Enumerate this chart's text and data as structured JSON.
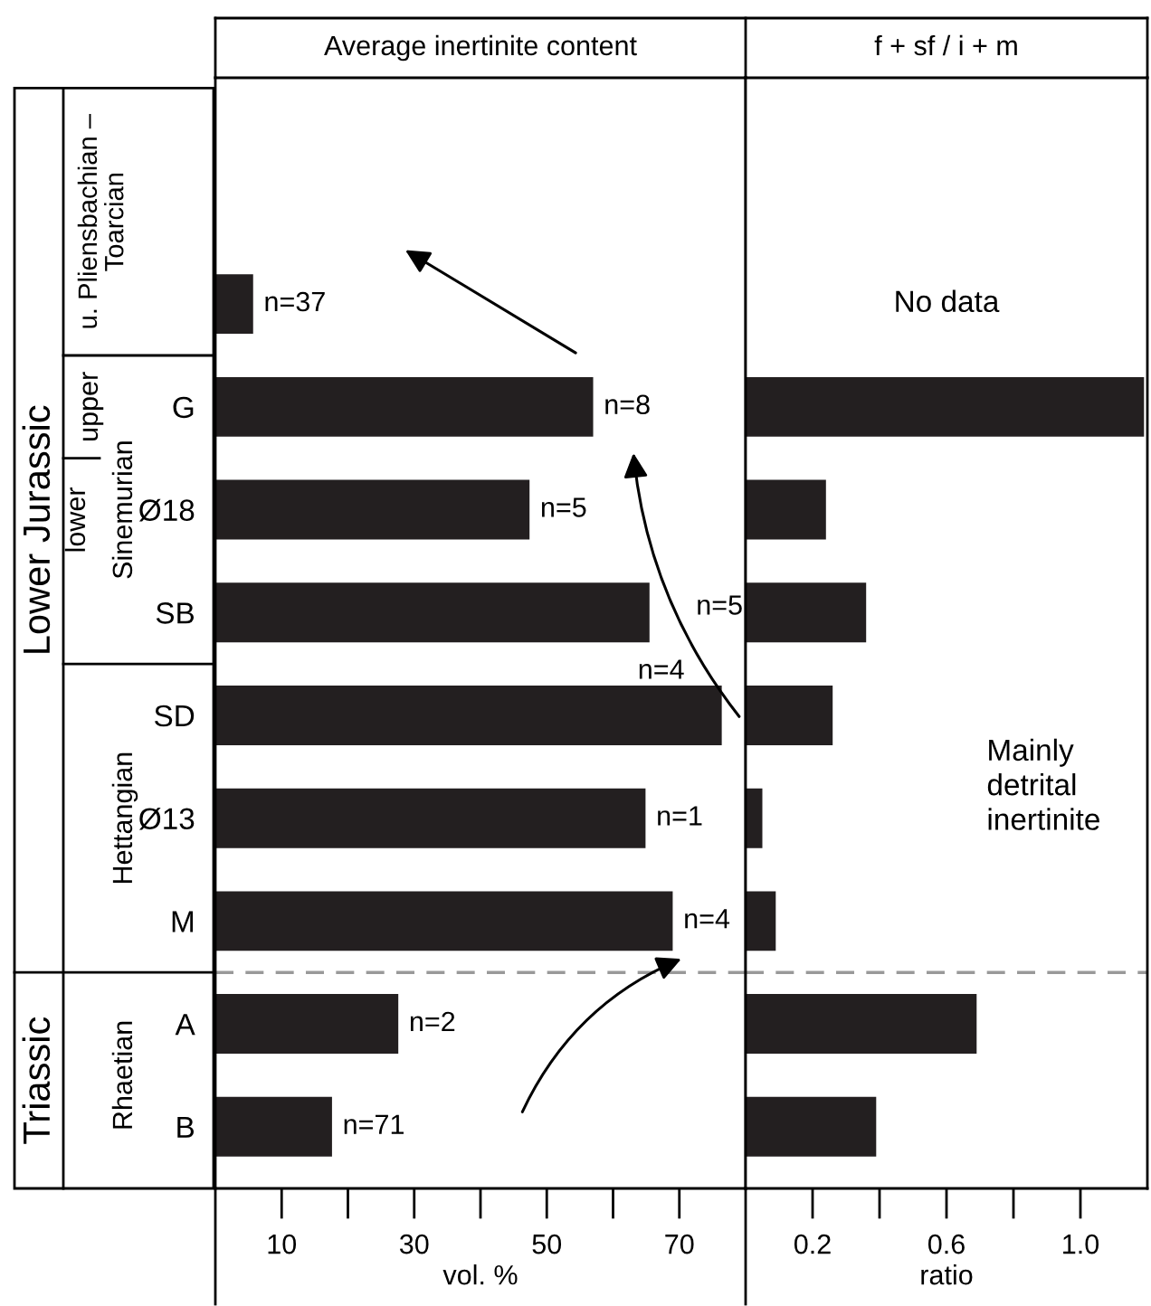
{
  "chart_data": [
    {
      "type": "bar",
      "orientation": "horizontal",
      "title": "Average inertinite content",
      "xlabel": "vol. %",
      "categories": [
        null,
        "G",
        "Ø18",
        "SB",
        "SD",
        "Ø13",
        "M",
        "A",
        "B"
      ],
      "values": [
        5.7,
        57,
        47.4,
        65.5,
        76.4,
        64.9,
        69,
        27.6,
        17.6
      ],
      "color": "#231f20",
      "xlim": [
        0,
        80
      ],
      "xticks": [
        10,
        30,
        50,
        70
      ],
      "annotations": [
        "Lower Jurassic",
        "Triassic",
        "u. Pliensbachian –\nToarcian",
        "upper",
        "lower",
        "Sinemurian",
        "Hettangian",
        "Rhaetian",
        "n=37",
        "n=8",
        "n=5",
        "n=5",
        "n=4",
        "n=1",
        "n=4",
        "n=2",
        "n=71"
      ],
      "grid": false,
      "legend": false
    },
    {
      "type": "bar",
      "orientation": "horizontal",
      "title": "f + sf / i + m",
      "xlabel": "ratio",
      "categories": [
        null,
        null,
        null,
        null,
        null,
        null,
        null,
        null,
        null
      ],
      "values": [
        null,
        1.19,
        0.24,
        0.36,
        0.26,
        0.05,
        0.09,
        0.69,
        0.39
      ],
      "color": "#231f20",
      "xlim": [
        0,
        1.2
      ],
      "xticks": [
        0.2,
        0.6,
        {
          "value": 1.0,
          "label": "1.0"
        }
      ],
      "annotations": [
        "No data",
        "Mainly detrital inertinite"
      ],
      "tick_labels": "x",
      "grid": false,
      "legend": false
    }
  ]
}
